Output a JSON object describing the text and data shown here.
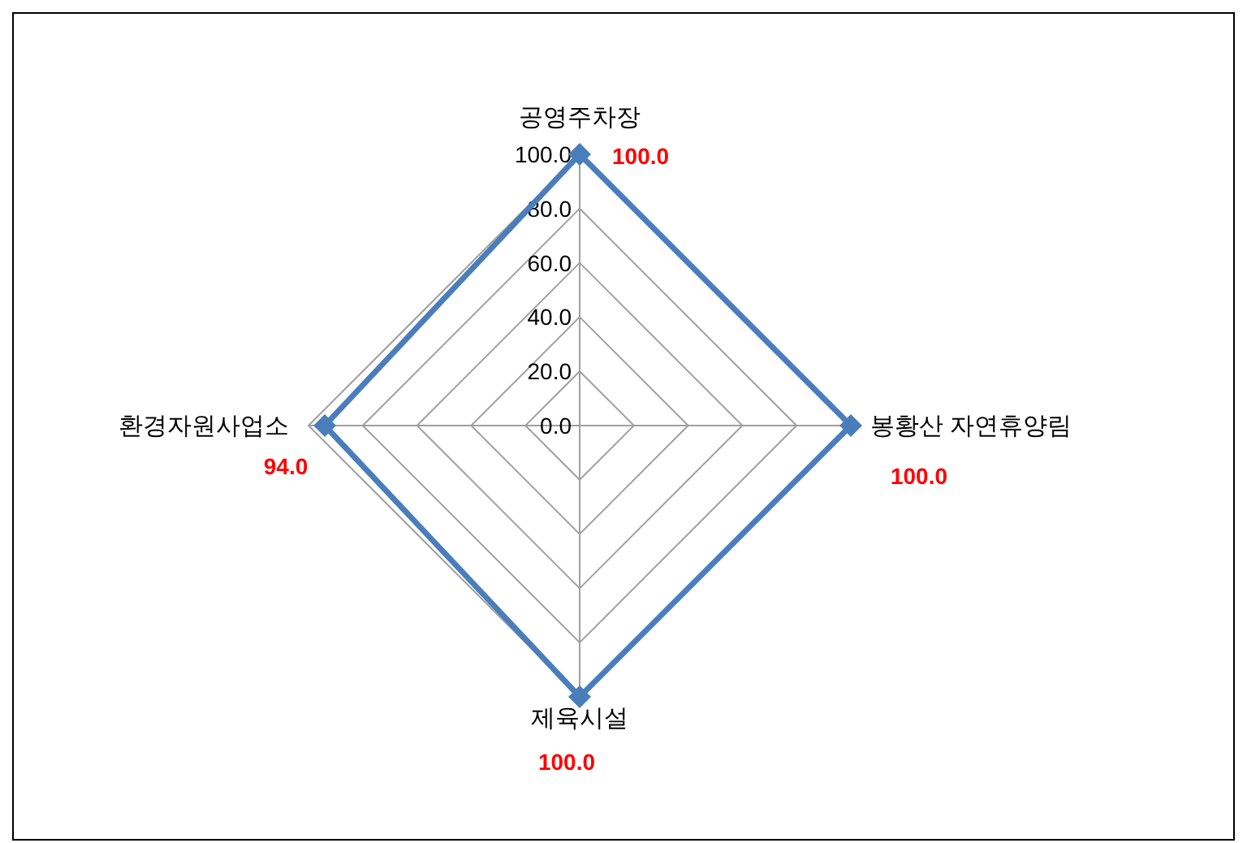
{
  "chart_data": {
    "type": "radar",
    "categories": [
      "공영주차장",
      "봉황산 자연휴양림",
      "제육시설",
      "환경자원사업소"
    ],
    "series": [
      {
        "color": "#4a7ebb",
        "values": [
          100,
          100,
          100,
          94
        ],
        "value_labels": [
          "100.0",
          "100.0",
          "100.0",
          "94.0"
        ]
      }
    ],
    "ylim": [
      0,
      100
    ],
    "yticks": [
      {
        "value": 0,
        "label": "0.0"
      },
      {
        "value": 20,
        "label": "20.0"
      },
      {
        "value": 40,
        "label": "40.0"
      },
      {
        "value": 60,
        "label": "60.0"
      },
      {
        "value": 80,
        "label": "80.0"
      },
      {
        "value": 100,
        "label": "100.0"
      }
    ],
    "grid": true,
    "marker": "diamond"
  }
}
